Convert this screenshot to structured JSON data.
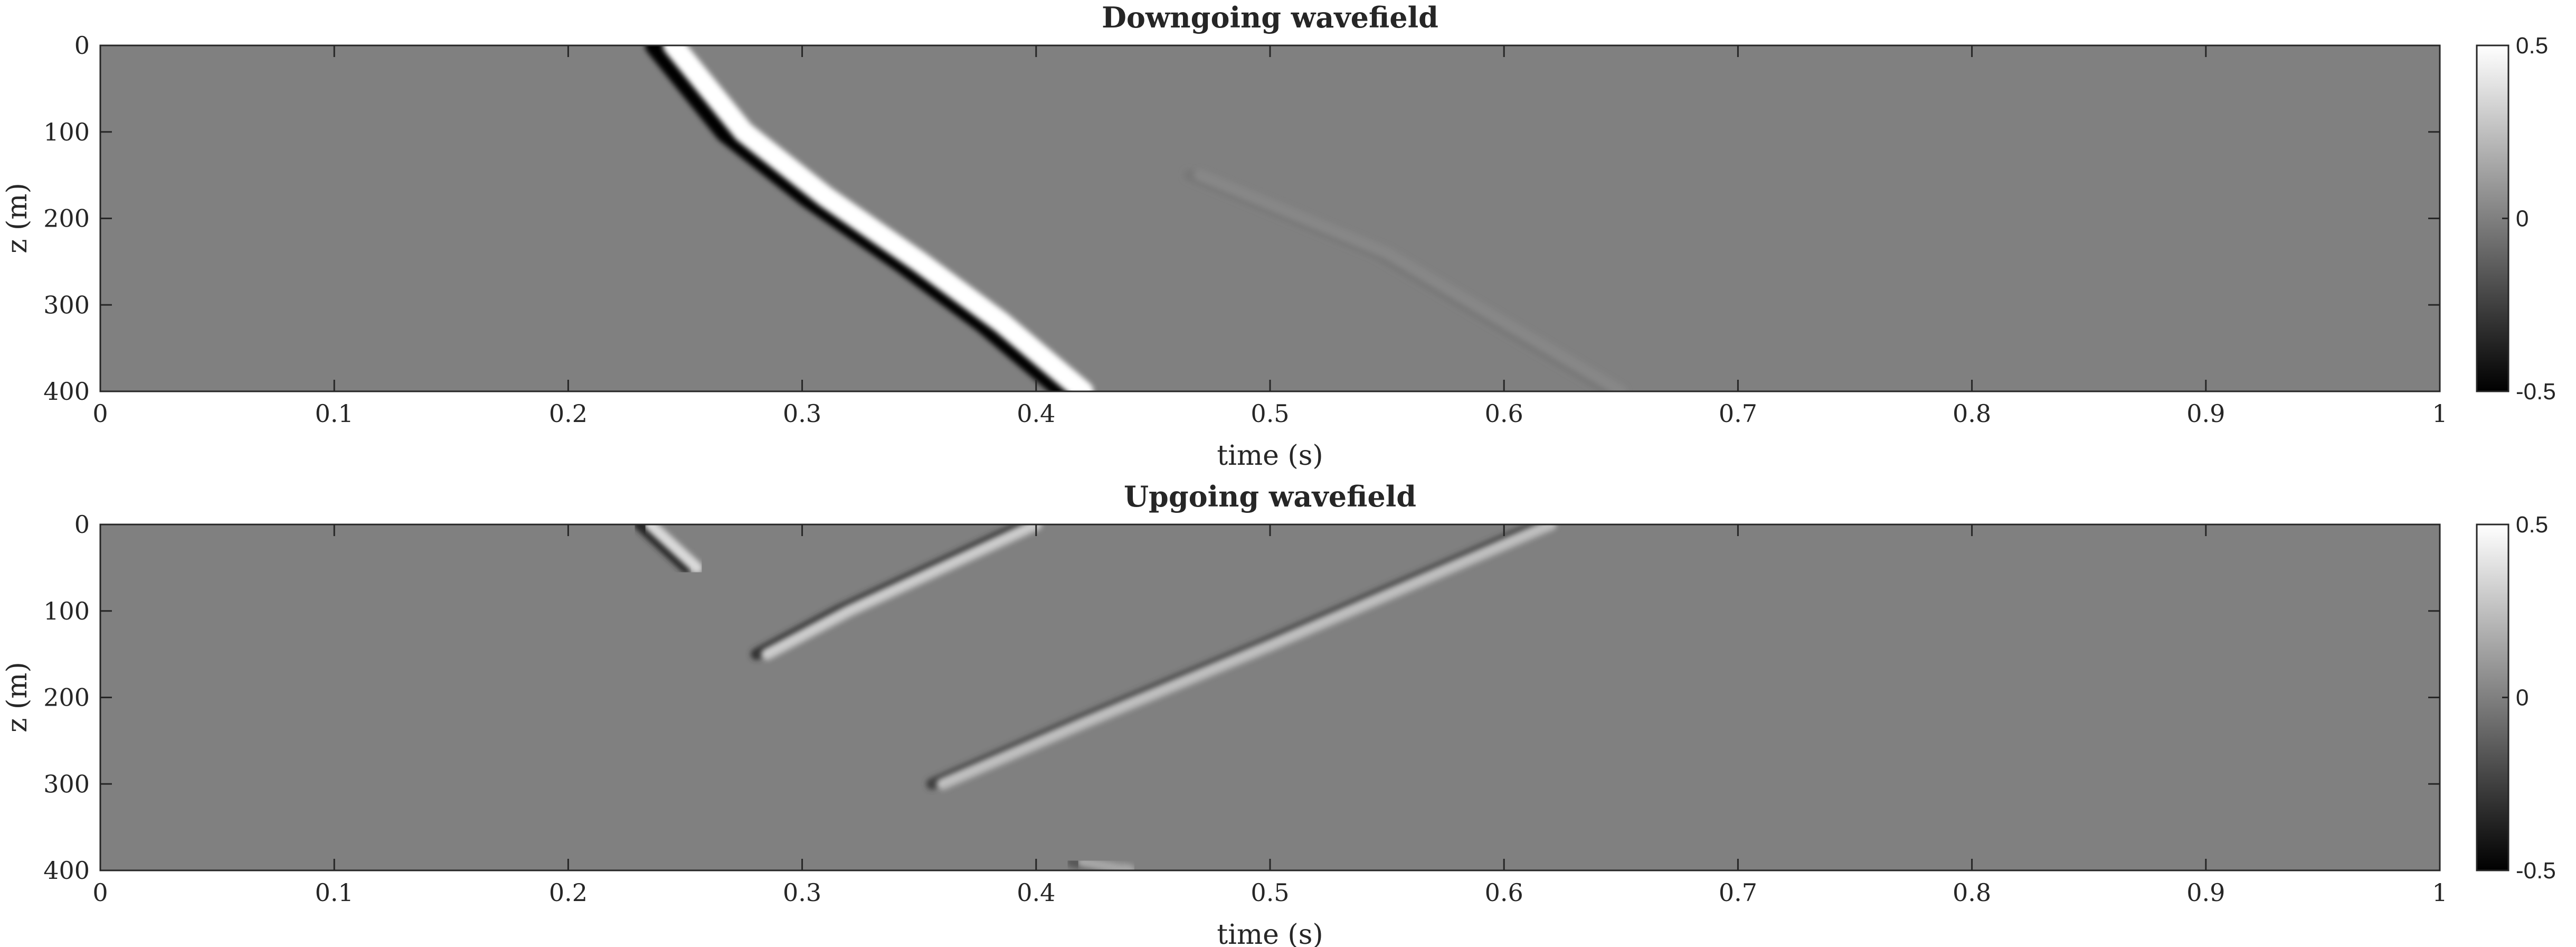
{
  "chart_data": [
    {
      "type": "heatmap",
      "title": "Downgoing wavefield",
      "xlabel": "time (s)",
      "ylabel": "z (m)",
      "xlim": [
        0,
        1
      ],
      "ylim": [
        0,
        400
      ],
      "y_reversed": true,
      "xticks": [
        "0",
        "0.1",
        "0.2",
        "0.3",
        "0.4",
        "0.5",
        "0.6",
        "0.7",
        "0.8",
        "0.9",
        "1"
      ],
      "yticks": [
        "0",
        "100",
        "200",
        "300",
        "400"
      ],
      "colormap": "gray",
      "clim": [
        -0.5,
        0.5
      ],
      "colorbar_ticks": [
        "0.5",
        "0",
        "-0.5"
      ],
      "events": [
        {
          "kind": "direct downgoing wavelet",
          "amplitude": 0.5,
          "path": [
            [
              0.245,
              0
            ],
            [
              0.275,
              100
            ],
            [
              0.31,
              175
            ],
            [
              0.35,
              250
            ],
            [
              0.385,
              320
            ],
            [
              0.42,
              400
            ]
          ]
        },
        {
          "kind": "faint downgoing multiple",
          "amplitude": 0.03,
          "path": [
            [
              0.47,
              150
            ],
            [
              0.55,
              240
            ],
            [
              0.6,
              320
            ],
            [
              0.65,
              400
            ]
          ]
        }
      ]
    },
    {
      "type": "heatmap",
      "title": "Upgoing wavefield",
      "xlabel": "time (s)",
      "ylabel": "z (m)",
      "xlim": [
        0,
        1
      ],
      "ylim": [
        0,
        400
      ],
      "y_reversed": true,
      "xticks": [
        "0",
        "0.1",
        "0.2",
        "0.3",
        "0.4",
        "0.5",
        "0.6",
        "0.7",
        "0.8",
        "0.9",
        "1"
      ],
      "yticks": [
        "0",
        "100",
        "200",
        "300",
        "400"
      ],
      "colormap": "gray",
      "clim": [
        -0.5,
        0.5
      ],
      "colorbar_ticks": [
        "0.5",
        "0",
        "-0.5"
      ],
      "events": [
        {
          "kind": "surface residual",
          "amplitude": 0.35,
          "path": [
            [
              0.235,
              0
            ],
            [
              0.245,
              25
            ],
            [
              0.255,
              50
            ]
          ]
        },
        {
          "kind": "reflection from 150 m",
          "amplitude": 0.3,
          "path": [
            [
              0.285,
              150
            ],
            [
              0.32,
              100
            ],
            [
              0.36,
              50
            ],
            [
              0.4,
              0
            ]
          ]
        },
        {
          "kind": "reflection from 300 m",
          "amplitude": 0.25,
          "path": [
            [
              0.36,
              300
            ],
            [
              0.42,
              230
            ],
            [
              0.5,
              140
            ],
            [
              0.56,
              70
            ],
            [
              0.62,
              0
            ]
          ]
        },
        {
          "kind": "bottom residual",
          "amplitude": 0.15,
          "path": [
            [
              0.42,
              390
            ],
            [
              0.44,
              400
            ]
          ]
        }
      ]
    }
  ]
}
